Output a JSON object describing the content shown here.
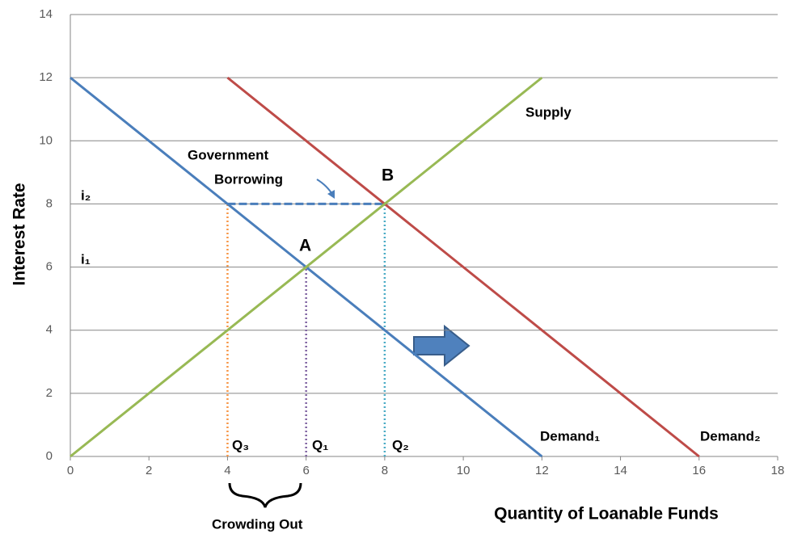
{
  "chart_data": {
    "type": "line",
    "x_label": "Quantity of Loanable Funds",
    "y_label": "Interest Rate",
    "xlim": [
      0,
      18
    ],
    "xticks": [
      0,
      2,
      4,
      6,
      8,
      10,
      12,
      14,
      16,
      18
    ],
    "ylim": [
      0,
      14
    ],
    "yticks": [
      0,
      2,
      4,
      6,
      8,
      10,
      12,
      14
    ],
    "grid": true,
    "series": [
      {
        "name": "Demand₁",
        "color": "#4a7ebb",
        "x": [
          0,
          12
        ],
        "values": [
          12,
          0
        ]
      },
      {
        "name": "Demand₂",
        "color": "#be4b48",
        "x": [
          4,
          16
        ],
        "values": [
          12,
          0
        ]
      },
      {
        "name": "Supply",
        "color": "#98b954",
        "x": [
          0,
          12
        ],
        "values": [
          0,
          12
        ]
      }
    ],
    "guides": [
      {
        "color": "#4a7ebb",
        "style": "dashed",
        "x": [
          4,
          8
        ],
        "values": [
          8,
          8
        ]
      },
      {
        "color": "#f79646",
        "style": "dotted",
        "x": [
          4,
          4
        ],
        "values": [
          0,
          8
        ]
      },
      {
        "color": "#8064a2",
        "style": "dotted",
        "x": [
          6,
          6
        ],
        "values": [
          0,
          6
        ]
      },
      {
        "color": "#4bacc6",
        "style": "dotted",
        "x": [
          8,
          8
        ],
        "values": [
          0,
          8
        ]
      }
    ],
    "annotations": [
      "A",
      "B",
      "i₂",
      "i₁",
      "Q₃",
      "Q₁",
      "Q₂",
      "Crowding Out"
    ],
    "government_label": [
      "Government",
      "Borrowing"
    ]
  }
}
